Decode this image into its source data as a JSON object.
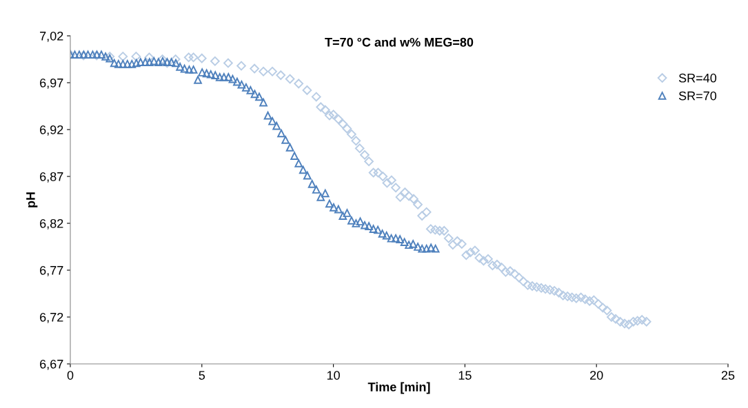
{
  "chart_data": {
    "type": "scatter",
    "title": "T=70 °C and w% MEG=80",
    "xlabel": "Time [min]",
    "ylabel": "pH",
    "xlim": [
      0,
      25
    ],
    "xticks": [
      0,
      5,
      10,
      15,
      20,
      25
    ],
    "ylim": [
      6.67,
      7.02
    ],
    "yticks": [
      {
        "value": 6.67,
        "label": "6,67"
      },
      {
        "value": 6.72,
        "label": "6,72"
      },
      {
        "value": 6.77,
        "label": "6,77"
      },
      {
        "value": 6.82,
        "label": "6,82"
      },
      {
        "value": 6.87,
        "label": "6,87"
      },
      {
        "value": 6.92,
        "label": "6,92"
      },
      {
        "value": 6.97,
        "label": "6,97"
      },
      {
        "value": 7.02,
        "label": "7,02"
      }
    ],
    "grid": false,
    "legend": "top right",
    "series": [
      {
        "name": "SR=40",
        "color": "#b9cde5",
        "marker": "diamond",
        "x": [
          0,
          0.5,
          1.0,
          1.5,
          2.0,
          2.5,
          3.0,
          3.5,
          3.68,
          4.0,
          4.5,
          4.68,
          5.0,
          5.5,
          6.0,
          6.5,
          7.0,
          7.34,
          7.68,
          8.0,
          8.35,
          8.68,
          9.0,
          9.35,
          9.52,
          9.69,
          9.85,
          10.0,
          10.19,
          10.36,
          10.52,
          10.69,
          10.86,
          11.0,
          11.19,
          11.35,
          11.52,
          11.7,
          11.88,
          12.04,
          12.21,
          12.37,
          12.54,
          12.72,
          12.87,
          13.05,
          13.21,
          13.37,
          13.54,
          13.7,
          13.87,
          14.04,
          14.21,
          14.38,
          14.54,
          14.71,
          14.88,
          15.05,
          15.21,
          15.38,
          15.55,
          15.71,
          15.88,
          16.05,
          16.22,
          16.39,
          16.55,
          16.72,
          16.89,
          17.06,
          17.22,
          17.39,
          17.56,
          17.73,
          17.9,
          18.06,
          18.23,
          18.4,
          18.57,
          18.73,
          18.9,
          19.07,
          19.23,
          19.41,
          19.57,
          19.74,
          19.9,
          20.07,
          20.24,
          20.4,
          20.57,
          20.73,
          20.9,
          21.07,
          21.23,
          21.4,
          21.56,
          21.73,
          21.9
        ],
        "values": [
          7.0,
          6.999,
          6.999,
          6.998,
          6.998,
          6.998,
          6.997,
          6.995,
          6.991,
          6.995,
          6.997,
          6.997,
          6.996,
          6.993,
          6.991,
          6.988,
          6.985,
          6.982,
          6.982,
          6.978,
          6.974,
          6.969,
          6.962,
          6.955,
          6.944,
          6.941,
          6.935,
          6.936,
          6.931,
          6.926,
          6.921,
          6.915,
          6.908,
          6.9,
          6.893,
          6.886,
          6.874,
          6.874,
          6.87,
          6.863,
          6.866,
          6.858,
          6.848,
          6.853,
          6.849,
          6.846,
          6.84,
          6.828,
          6.832,
          6.814,
          6.813,
          6.812,
          6.812,
          6.804,
          6.797,
          6.801,
          6.798,
          6.786,
          6.789,
          6.791,
          6.783,
          6.78,
          6.782,
          6.775,
          6.776,
          6.773,
          6.768,
          6.769,
          6.766,
          6.762,
          6.758,
          6.754,
          6.753,
          6.752,
          6.751,
          6.75,
          6.749,
          6.748,
          6.746,
          6.743,
          6.742,
          6.741,
          6.74,
          6.741,
          6.739,
          6.737,
          6.738,
          6.734,
          6.73,
          6.727,
          6.72,
          6.718,
          6.715,
          6.713,
          6.712,
          6.715,
          6.716,
          6.717,
          6.715
        ]
      },
      {
        "name": "SR=70",
        "color": "#4f81bd",
        "marker": "triangle",
        "x": [
          0,
          0.17,
          0.34,
          0.51,
          0.67,
          0.85,
          1.01,
          1.18,
          1.34,
          1.5,
          1.67,
          1.83,
          2.0,
          2.17,
          2.34,
          2.51,
          2.67,
          2.85,
          3.01,
          3.18,
          3.35,
          3.51,
          3.68,
          3.84,
          4.01,
          4.17,
          4.34,
          4.52,
          4.68,
          4.85,
          5.01,
          5.18,
          5.34,
          5.51,
          5.68,
          5.84,
          6.01,
          6.17,
          6.34,
          6.51,
          6.68,
          6.85,
          7.01,
          7.18,
          7.34,
          7.51,
          7.68,
          7.84,
          8.02,
          8.18,
          8.35,
          8.52,
          8.68,
          8.85,
          9.01,
          9.19,
          9.35,
          9.52,
          9.69,
          9.85,
          10.01,
          10.19,
          10.36,
          10.52,
          10.69,
          10.86,
          11.02,
          11.19,
          11.35,
          11.52,
          11.69,
          11.86,
          12.02,
          12.2,
          12.37,
          12.53,
          12.7,
          12.87,
          13.03,
          13.21,
          13.37,
          13.54,
          13.71,
          13.88
        ],
        "values": [
          7.0,
          7.0,
          7.0,
          7.0,
          7.0,
          7.0,
          7.0,
          7.0,
          6.998,
          6.996,
          6.991,
          6.99,
          6.99,
          6.99,
          6.99,
          6.991,
          6.992,
          6.992,
          6.992,
          6.993,
          6.992,
          6.993,
          6.992,
          6.992,
          6.991,
          6.987,
          6.985,
          6.984,
          6.984,
          6.973,
          6.981,
          6.98,
          6.979,
          6.978,
          6.976,
          6.976,
          6.976,
          6.974,
          6.971,
          6.968,
          6.965,
          6.962,
          6.958,
          6.955,
          6.949,
          6.935,
          6.929,
          6.924,
          6.916,
          6.909,
          6.901,
          6.892,
          6.884,
          6.877,
          6.871,
          6.862,
          6.856,
          6.848,
          6.852,
          6.841,
          6.837,
          6.835,
          6.828,
          6.831,
          6.823,
          6.82,
          6.822,
          6.818,
          6.817,
          6.814,
          6.813,
          6.809,
          6.807,
          6.804,
          6.804,
          6.803,
          6.8,
          6.797,
          6.798,
          6.795,
          6.793,
          6.793,
          6.794,
          6.793
        ]
      }
    ]
  }
}
